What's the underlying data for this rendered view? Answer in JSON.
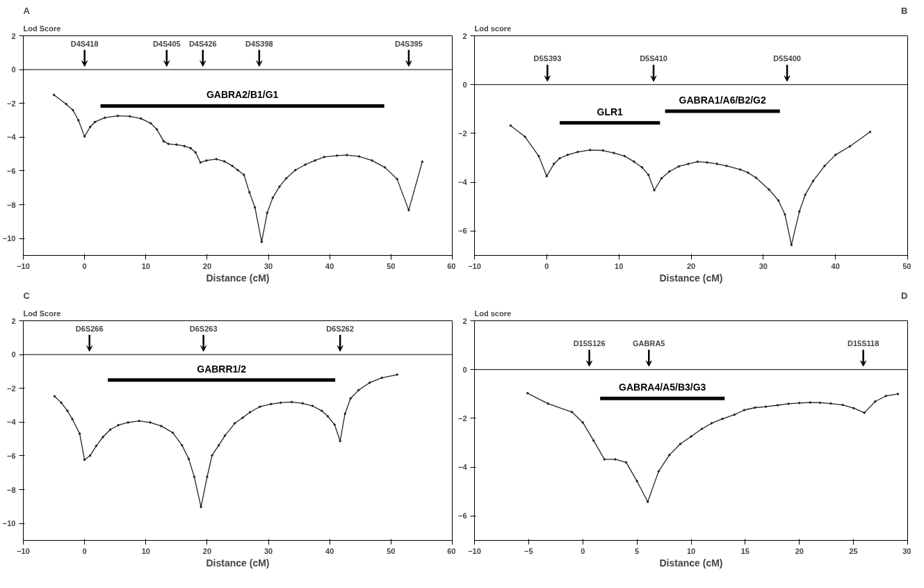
{
  "chart_data": [
    {
      "type": "line",
      "title": "A",
      "ylabel": "Lod Score",
      "xlabel": "Distance (cM)",
      "xlim": [
        -10,
        60
      ],
      "xticks": [
        -10,
        0,
        10,
        20,
        30,
        40,
        50,
        60
      ],
      "ylim": [
        -11,
        2
      ],
      "yticks": [
        2,
        0,
        -2,
        -4,
        -6,
        -8,
        -10
      ],
      "grid": false,
      "marker": "circle",
      "line_style": "solid",
      "ref_lines": [
        {
          "axis": "y",
          "value": 0,
          "color": "#000000"
        }
      ],
      "series": [
        {
          "color": "#222222",
          "x": [
            -5,
            -3,
            -1.9,
            -1,
            0,
            0.9,
            1.7,
            3.3,
            5.4,
            7.4,
            9.2,
            10.8,
            11.8,
            12.9,
            13.7,
            15,
            16.3,
            17.3,
            18.1,
            18.9,
            19.9,
            21.5,
            22.8,
            24.1,
            25,
            26,
            26.9,
            27.8,
            28.9,
            29.8,
            30.7,
            31.8,
            32.9,
            34.4,
            36,
            37.6,
            39.1,
            41.2,
            42.8,
            44.8,
            46.9,
            49,
            51,
            52.9,
            55.1
          ],
          "values": [
            -1.5,
            -2.04,
            -2.4,
            -3.0,
            -3.96,
            -3.4,
            -3.1,
            -2.85,
            -2.74,
            -2.77,
            -2.9,
            -3.18,
            -3.54,
            -4.24,
            -4.4,
            -4.44,
            -4.53,
            -4.65,
            -4.9,
            -5.5,
            -5.38,
            -5.3,
            -5.43,
            -5.7,
            -5.95,
            -6.23,
            -7.26,
            -8.16,
            -10.2,
            -8.48,
            -7.59,
            -6.93,
            -6.44,
            -5.95,
            -5.63,
            -5.38,
            -5.17,
            -5.09,
            -5.06,
            -5.14,
            -5.38,
            -5.79,
            -6.48,
            -8.32,
            -5.46
          ]
        },
        {
          "name": "GABRA2/B1/G1",
          "color": "#000000",
          "marker": "none",
          "x": [
            2.6,
            48.9
          ],
          "values": [
            -2.15,
            -2.15
          ]
        }
      ],
      "annotations": [
        {
          "text": "D4S418",
          "x": 0,
          "y": 0
        },
        {
          "text": "D4S405",
          "x": 13.4,
          "y": 0
        },
        {
          "text": "D4S426",
          "x": 19.3,
          "y": 0
        },
        {
          "text": "D4S398",
          "x": 28.5,
          "y": 0
        },
        {
          "text": "D4S395",
          "x": 52.9,
          "y": 0
        }
      ]
    },
    {
      "type": "line",
      "title": "B",
      "ylabel": "Lod score",
      "xlabel": "Distance (cM)",
      "xlim": [
        -10,
        50
      ],
      "xticks": [
        -10,
        0,
        10,
        20,
        30,
        40,
        50
      ],
      "ylim": [
        -7,
        2
      ],
      "yticks": [
        2,
        0,
        -2,
        -4,
        -6
      ],
      "grid": false,
      "marker": "circle",
      "line_style": "solid",
      "ref_lines": [
        {
          "axis": "y",
          "value": 0,
          "color": "#000000"
        }
      ],
      "series": [
        {
          "color": "#222222",
          "x": [
            -5,
            -3,
            -1.1,
            0,
            1,
            1.8,
            2.9,
            4.3,
            6,
            7.8,
            9.3,
            10.8,
            12.1,
            13.2,
            14.1,
            14.9,
            15.9,
            17,
            18.3,
            19.6,
            20.9,
            22.2,
            23.6,
            24.9,
            26.8,
            27.9,
            29,
            30.8,
            32.1,
            33,
            33.9,
            35,
            35.8,
            36.9,
            38.5,
            40,
            42,
            44.8
          ],
          "values": [
            -1.68,
            -2.14,
            -2.93,
            -3.75,
            -3.25,
            -3.02,
            -2.88,
            -2.76,
            -2.68,
            -2.7,
            -2.8,
            -2.93,
            -3.16,
            -3.39,
            -3.7,
            -4.33,
            -3.84,
            -3.56,
            -3.35,
            -3.25,
            -3.16,
            -3.19,
            -3.25,
            -3.33,
            -3.48,
            -3.61,
            -3.82,
            -4.3,
            -4.75,
            -5.32,
            -6.57,
            -5.2,
            -4.52,
            -3.95,
            -3.33,
            -2.88,
            -2.53,
            -1.94
          ]
        },
        {
          "name": "GLR1",
          "color": "#000000",
          "marker": "none",
          "x": [
            1.8,
            15.7
          ],
          "values": [
            -1.57,
            -1.57
          ]
        },
        {
          "name": "GABRA1/A6/B2/G2",
          "color": "#000000",
          "marker": "none",
          "x": [
            16.4,
            32.3
          ],
          "values": [
            -1.09,
            -1.09
          ]
        }
      ],
      "annotations": [
        {
          "text": "D5S393",
          "x": 0.1,
          "y": 0
        },
        {
          "text": "D5S410",
          "x": 14.8,
          "y": 0
        },
        {
          "text": "D5S400",
          "x": 33.3,
          "y": 0
        }
      ]
    },
    {
      "type": "line",
      "title": "C",
      "ylabel": "Lod Score",
      "xlabel": "Distance (cM)",
      "xlim": [
        -10,
        60
      ],
      "xticks": [
        -10,
        0,
        10,
        20,
        30,
        40,
        50,
        60
      ],
      "ylim": [
        -11,
        2
      ],
      "yticks": [
        2,
        0,
        -2,
        -4,
        -6,
        -8,
        -10
      ],
      "grid": false,
      "marker": "circle",
      "line_style": "solid",
      "ref_lines": [
        {
          "axis": "y",
          "value": 0,
          "color": "#000000"
        }
      ],
      "series": [
        {
          "color": "#222222",
          "x": [
            -4.9,
            -3.8,
            -2.8,
            -2,
            -0.8,
            0,
            0.9,
            1.9,
            3,
            4.2,
            5.5,
            7.1,
            8.9,
            10.7,
            12.5,
            14.4,
            15.9,
            17,
            17.9,
            19,
            20,
            20.8,
            21.9,
            22.9,
            24.5,
            25.8,
            27,
            28.6,
            30.4,
            32,
            33.8,
            35.6,
            37.2,
            38.7,
            39.7,
            40.8,
            41.7,
            42.5,
            43.4,
            44.7,
            46.5,
            48.5,
            51
          ],
          "values": [
            -2.47,
            -2.85,
            -3.33,
            -3.82,
            -4.68,
            -6.23,
            -5.98,
            -5.41,
            -4.88,
            -4.44,
            -4.18,
            -4.02,
            -3.93,
            -4.02,
            -4.23,
            -4.63,
            -5.37,
            -6.18,
            -7.24,
            -9.02,
            -7.24,
            -5.97,
            -5.37,
            -4.8,
            -4.07,
            -3.74,
            -3.41,
            -3.09,
            -2.93,
            -2.85,
            -2.81,
            -2.89,
            -3.04,
            -3.33,
            -3.66,
            -4.15,
            -5.12,
            -3.5,
            -2.6,
            -2.11,
            -1.67,
            -1.38,
            -1.19
          ]
        },
        {
          "name": "GABRR1/2",
          "color": "#000000",
          "marker": "none",
          "x": [
            3.8,
            40.9
          ],
          "values": [
            -1.51,
            -1.51
          ]
        }
      ],
      "annotations": [
        {
          "text": "D6S266",
          "x": 0.8,
          "y": 0
        },
        {
          "text": "D6S263",
          "x": 19.4,
          "y": 0
        },
        {
          "text": "D6S262",
          "x": 41.7,
          "y": 0
        }
      ]
    },
    {
      "type": "line",
      "title": "D",
      "ylabel": "Lod score",
      "xlabel": "Distance (cM)",
      "xlim": [
        -10,
        30
      ],
      "xticks": [
        -10,
        -5,
        0,
        5,
        10,
        15,
        20,
        25,
        30
      ],
      "ylim": [
        -7,
        2
      ],
      "yticks": [
        2,
        0,
        -2,
        -4,
        -6
      ],
      "grid": false,
      "marker": "circle",
      "line_style": "solid",
      "ref_lines": [
        {
          "axis": "y",
          "value": 0,
          "color": "#000000"
        }
      ],
      "series": [
        {
          "color": "#222222",
          "x": [
            -5.1,
            -3.2,
            -1,
            0,
            1,
            2,
            3,
            4,
            5,
            6,
            7,
            8,
            9,
            10,
            11,
            11.9,
            12.9,
            14,
            14.9,
            15.9,
            16.9,
            18,
            19,
            20,
            21,
            21.9,
            22.9,
            24,
            25,
            26,
            27,
            28,
            29.1
          ],
          "values": [
            -0.97,
            -1.4,
            -1.74,
            -2.17,
            -2.91,
            -3.68,
            -3.68,
            -3.8,
            -4.57,
            -5.42,
            -4.17,
            -3.5,
            -3.05,
            -2.74,
            -2.43,
            -2.2,
            -2.02,
            -1.85,
            -1.66,
            -1.56,
            -1.52,
            -1.46,
            -1.4,
            -1.37,
            -1.35,
            -1.36,
            -1.39,
            -1.45,
            -1.58,
            -1.77,
            -1.31,
            -1.08,
            -1.0
          ]
        },
        {
          "name": "GABRA4/A5/B3/G3",
          "color": "#000000",
          "marker": "none",
          "x": [
            1.6,
            13.1
          ],
          "values": [
            -1.18,
            -1.18
          ]
        }
      ],
      "annotations": [
        {
          "text": "D15S126",
          "x": 0.6,
          "y": 0
        },
        {
          "text": "GABRA5",
          "x": 6.1,
          "y": 0
        },
        {
          "text": "D15S118",
          "x": 25.9,
          "y": 0
        }
      ]
    }
  ]
}
